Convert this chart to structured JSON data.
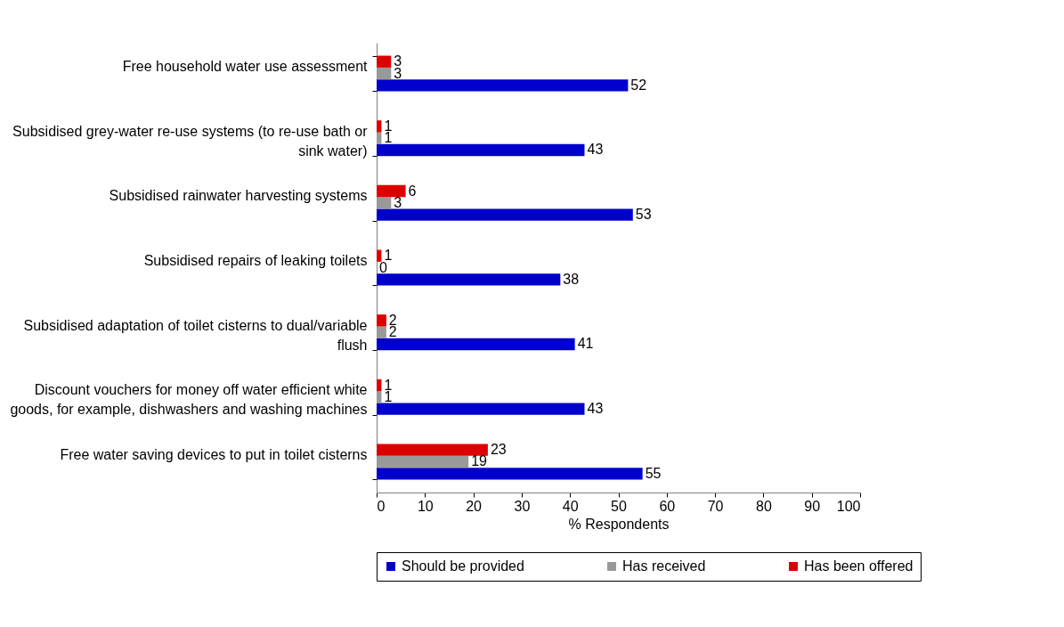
{
  "chart_data": {
    "type": "bar",
    "orientation": "horizontal",
    "xlabel": "% Respondents",
    "categories": [
      "Free household water use assessment",
      "Subsidised grey-water re-use systems (to re-use bath or sink water)",
      "Subsidised rainwater harvesting systems",
      "Subsidised repairs of leaking toilets",
      "Subsidised adaptation of toilet cisterns to dual/variable flush",
      "Discount vouchers for money off water efficient white goods, for example, dishwashers and washing machines",
      "Free water saving devices to put in toilet cisterns"
    ],
    "series": [
      {
        "name": "Should be provided",
        "color": "#0000cc",
        "values": [
          52,
          43,
          53,
          38,
          41,
          43,
          55
        ]
      },
      {
        "name": "Has received",
        "color": "#999999",
        "values": [
          3,
          1,
          3,
          0,
          2,
          1,
          19
        ]
      },
      {
        "name": "Has been offered",
        "color": "#dd0000",
        "values": [
          3,
          1,
          6,
          1,
          2,
          1,
          23
        ]
      }
    ],
    "xlim": [
      0,
      100
    ],
    "xticks": [
      0,
      10,
      20,
      30,
      40,
      50,
      60,
      70,
      80,
      90,
      100
    ],
    "grid": false,
    "legend": "bottom",
    "data_labels": true
  }
}
